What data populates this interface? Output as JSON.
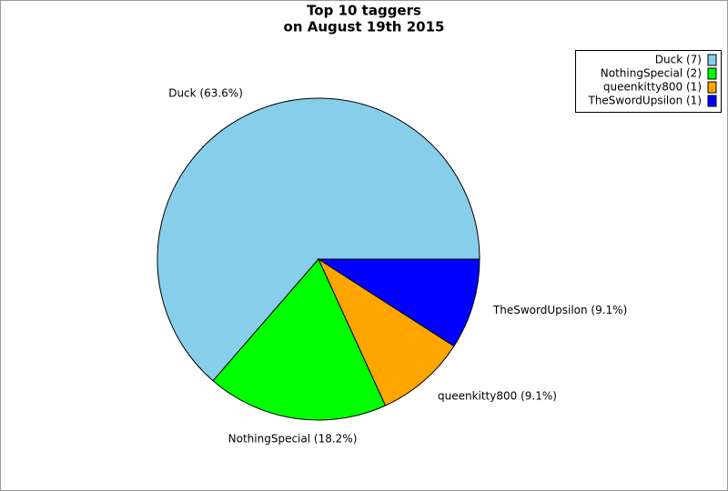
{
  "chart_data": {
    "type": "pie",
    "title": [
      "Top 10 taggers",
      "on August 19th 2015"
    ],
    "categories": [
      "Duck",
      "NothingSpecial",
      "queenkitty800",
      "TheSwordUpsilon"
    ],
    "values": [
      7,
      2,
      1,
      1
    ],
    "colors": [
      "#87ceeb",
      "#00ff00",
      "#ffa500",
      "#0000ff"
    ],
    "legend_labels": [
      "Duck (7)",
      "NothingSpecial (2)",
      "queenkitty800 (1)",
      "TheSwordUpsilon (1)"
    ],
    "value_labels": [
      "Duck (63.6%)",
      "NothingSpecial (18.2%)",
      "queenkitty800 (9.1%)",
      "TheSwordUpsilon (9.1%)"
    ],
    "legend_position": "upper right"
  }
}
